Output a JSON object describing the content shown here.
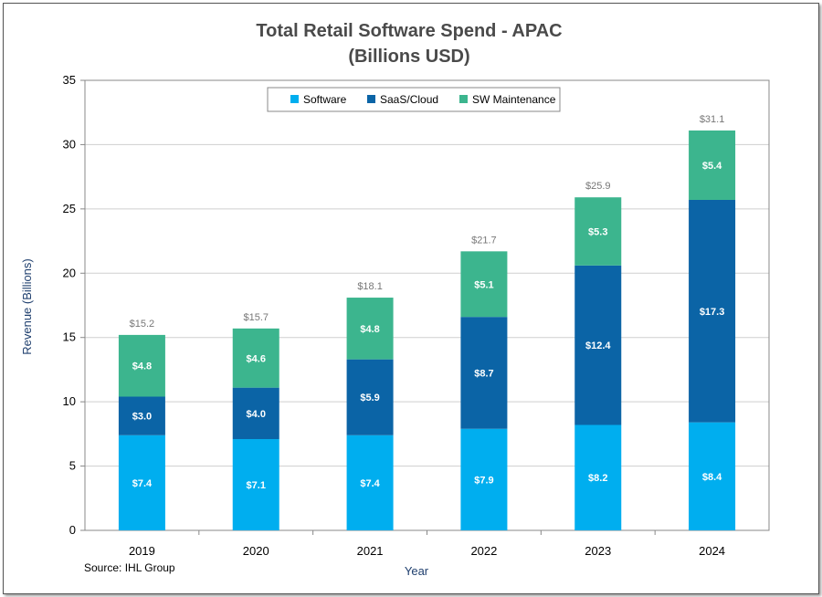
{
  "chart_data": {
    "type": "bar",
    "stacked": true,
    "title": "Total Retail Software Spend - APAC",
    "subtitle": "(Billions USD)",
    "xlabel": "Year",
    "ylabel": "Revenue (Billions)",
    "ylim": [
      0,
      35
    ],
    "yticks": [
      "0",
      "5",
      "10",
      "15",
      "20",
      "25",
      "30",
      "35"
    ],
    "categories": [
      "2019",
      "2020",
      "2021",
      "2022",
      "2023",
      "2024"
    ],
    "series": [
      {
        "name": "Software",
        "color": "#00aeef",
        "values": [
          7.4,
          7.1,
          7.4,
          7.9,
          8.2,
          8.4
        ],
        "labels": [
          "$7.4",
          "$7.1",
          "$7.4",
          "$7.9",
          "$8.2",
          "$8.4"
        ]
      },
      {
        "name": "SaaS/Cloud",
        "color": "#0b64a6",
        "values": [
          3.0,
          4.0,
          5.9,
          8.7,
          12.4,
          17.3
        ],
        "labels": [
          "$3.0",
          "$4.0",
          "$5.9",
          "$8.7",
          "$12.4",
          "$17.3"
        ]
      },
      {
        "name": "SW Maintenance",
        "color": "#3cb58e",
        "values": [
          4.8,
          4.6,
          4.8,
          5.1,
          5.3,
          5.4
        ],
        "labels": [
          "$4.8",
          "$4.6",
          "$4.8",
          "$5.1",
          "$5.3",
          "$5.4"
        ]
      }
    ],
    "totals": [
      "$15.2",
      "$15.7",
      "$18.1",
      "$21.7",
      "$25.9",
      "$31.1"
    ],
    "grid": true,
    "legend_position": "top-center",
    "source": "Source: IHL Group"
  }
}
